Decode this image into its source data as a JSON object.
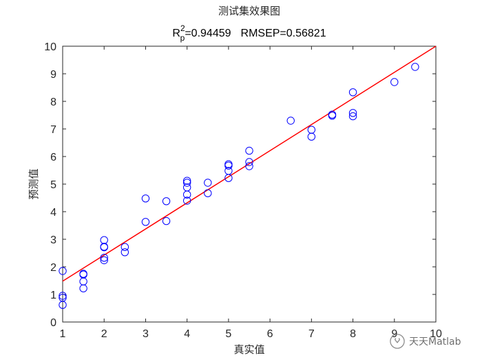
{
  "chart_data": {
    "type": "scatter",
    "title": "测试集效果图",
    "stats_title": {
      "r_symbol": "R",
      "r_sup": "2",
      "r_sub": "p",
      "r_value": "=0.94459",
      "rmsep": "RMSEP=0.56821"
    },
    "xlabel": "真实值",
    "ylabel": "预测值",
    "xlim": [
      1,
      10
    ],
    "ylim": [
      0,
      10
    ],
    "xticks": [
      1,
      2,
      3,
      4,
      5,
      6,
      7,
      8,
      9,
      10
    ],
    "yticks": [
      0,
      1,
      2,
      3,
      4,
      5,
      6,
      7,
      8,
      9,
      10
    ],
    "grid": false,
    "marker_color": "#0000ff",
    "line_color": "#ff0000",
    "fit_line": {
      "x": [
        1,
        10
      ],
      "y": [
        1.48,
        10.0
      ]
    },
    "points": [
      {
        "x": 1,
        "y": 1.85
      },
      {
        "x": 1,
        "y": 0.95
      },
      {
        "x": 1,
        "y": 0.88
      },
      {
        "x": 1,
        "y": 0.62
      },
      {
        "x": 1.5,
        "y": 1.75
      },
      {
        "x": 1.5,
        "y": 1.72
      },
      {
        "x": 1.5,
        "y": 1.47
      },
      {
        "x": 1.5,
        "y": 1.22
      },
      {
        "x": 2,
        "y": 2.97
      },
      {
        "x": 2,
        "y": 2.73
      },
      {
        "x": 2,
        "y": 2.71
      },
      {
        "x": 2,
        "y": 2.33
      },
      {
        "x": 2,
        "y": 2.24
      },
      {
        "x": 2.5,
        "y": 2.72
      },
      {
        "x": 2.5,
        "y": 2.53
      },
      {
        "x": 3,
        "y": 4.48
      },
      {
        "x": 3,
        "y": 3.63
      },
      {
        "x": 3.5,
        "y": 4.38
      },
      {
        "x": 3.5,
        "y": 3.66
      },
      {
        "x": 4,
        "y": 5.12
      },
      {
        "x": 4,
        "y": 5.05
      },
      {
        "x": 4,
        "y": 4.88
      },
      {
        "x": 4,
        "y": 4.62
      },
      {
        "x": 4,
        "y": 4.4
      },
      {
        "x": 4.5,
        "y": 5.05
      },
      {
        "x": 4.5,
        "y": 4.67
      },
      {
        "x": 5,
        "y": 5.72
      },
      {
        "x": 5,
        "y": 5.67
      },
      {
        "x": 5,
        "y": 5.48
      },
      {
        "x": 5,
        "y": 5.22
      },
      {
        "x": 5.5,
        "y": 6.21
      },
      {
        "x": 5.5,
        "y": 5.8
      },
      {
        "x": 5.5,
        "y": 5.65
      },
      {
        "x": 6.5,
        "y": 7.3
      },
      {
        "x": 7,
        "y": 6.97
      },
      {
        "x": 7,
        "y": 6.72
      },
      {
        "x": 7.5,
        "y": 7.52
      },
      {
        "x": 7.5,
        "y": 7.48
      },
      {
        "x": 8,
        "y": 8.33
      },
      {
        "x": 8,
        "y": 7.58
      },
      {
        "x": 8,
        "y": 7.46
      },
      {
        "x": 9,
        "y": 8.7
      },
      {
        "x": 9.5,
        "y": 9.25
      }
    ]
  },
  "watermark": {
    "text": "天天Matlab",
    "icon": "wechat-icon"
  }
}
